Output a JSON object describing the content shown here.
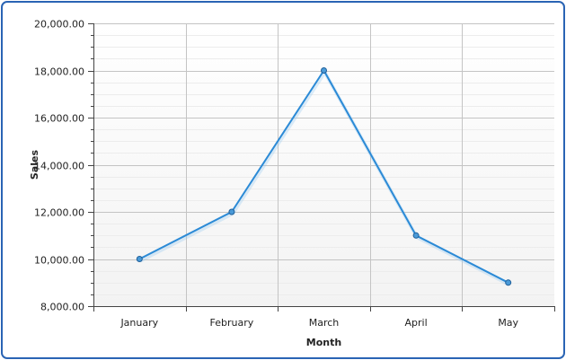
{
  "chart_data": {
    "type": "line",
    "title": "",
    "xlabel": "Month",
    "ylabel": "Sales",
    "categories": [
      "January",
      "February",
      "March",
      "April",
      "May"
    ],
    "series": [
      {
        "values": [
          10000,
          12000,
          18000,
          11000,
          9000
        ]
      }
    ],
    "ylim": [
      8000,
      20000
    ],
    "ytick_labels": [
      "8,000.00",
      "10,000.00",
      "12,000.00",
      "14,000.00",
      "16,000.00",
      "18,000.00",
      "20,000.00"
    ],
    "ytick_values": [
      8000,
      10000,
      12000,
      14000,
      16000,
      18000,
      20000
    ],
    "grid": true,
    "legend": "none",
    "colors": {
      "line": "#2b8ad6",
      "marker_fill": "#4a9ad8",
      "marker_stroke": "#1f5f99",
      "border": "#2a64b4",
      "grid_major": "#c4c4c4",
      "grid_minor": "#ececec",
      "axis": "#444444"
    }
  }
}
